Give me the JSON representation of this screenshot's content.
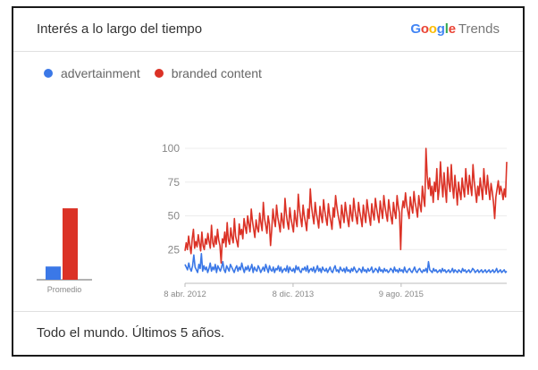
{
  "card": {
    "title": "Interés a lo largo del tiempo",
    "brand": {
      "google": "Google",
      "trends": "Trends"
    },
    "footer": "Todo el mundo. Últimos 5 años."
  },
  "colors": {
    "advertainment": "#3b78e7",
    "branded_content": "#db3226",
    "grid": "#ececec",
    "axis_text": "#888888"
  },
  "chart_data": [
    {
      "type": "bar",
      "categories": [
        "Promedio"
      ],
      "series": [
        {
          "name": "advertainment",
          "values": [
            10
          ]
        },
        {
          "name": "branded content",
          "values": [
            54
          ]
        }
      ],
      "xlabel": "",
      "ylabel": "",
      "ylim": [
        0,
        100
      ]
    },
    {
      "type": "line",
      "title": "",
      "x_start": "2012-04-08",
      "x_end": "2017-03-26",
      "xticks": [
        {
          "date": "2012-04-08",
          "label": "8 abr. 2012"
        },
        {
          "date": "2013-12-08",
          "label": "8 dic. 2013"
        },
        {
          "date": "2015-08-09",
          "label": "9 ago. 2015"
        }
      ],
      "yticks": [
        25,
        50,
        75,
        100
      ],
      "ylim": [
        0,
        100
      ],
      "grid": true,
      "legend": "top-left",
      "series": [
        {
          "name": "advertainment",
          "values": [
            14,
            12,
            10,
            15,
            11,
            9,
            13,
            21,
            12,
            10,
            8,
            14,
            11,
            22,
            9,
            13,
            10,
            12,
            8,
            11,
            15,
            9,
            12,
            10,
            14,
            8,
            13,
            11,
            9,
            12,
            16,
            10,
            8,
            13,
            11,
            9,
            14,
            12,
            10,
            8,
            11,
            13,
            9,
            12,
            10,
            15,
            11,
            8,
            12,
            10,
            13,
            9,
            11,
            14,
            8,
            12,
            10,
            9,
            13,
            11,
            8,
            10,
            12,
            9,
            14,
            11,
            8,
            13,
            10,
            9,
            12,
            8,
            11,
            10,
            13,
            9,
            12,
            8,
            10,
            11,
            9,
            13,
            8,
            12,
            10,
            9,
            11,
            8,
            13,
            10,
            12,
            9,
            8,
            11,
            10,
            12,
            9,
            13,
            8,
            10,
            11,
            9,
            12,
            8,
            10,
            13,
            9,
            11,
            8,
            12,
            10,
            9,
            11,
            8,
            10,
            12,
            9,
            8,
            11,
            13,
            9,
            10,
            8,
            12,
            10,
            9,
            11,
            8,
            12,
            9,
            10,
            8,
            11,
            9,
            12,
            10,
            8,
            9,
            11,
            10,
            8,
            12,
            9,
            10,
            8,
            11,
            9,
            10,
            12,
            8,
            9,
            11,
            10,
            8,
            12,
            9,
            10,
            8,
            11,
            9,
            10,
            8,
            9,
            11,
            10,
            8,
            12,
            9,
            10,
            8,
            11,
            9,
            10,
            8,
            12,
            9,
            8,
            10,
            11,
            9,
            8,
            10,
            12,
            9,
            8,
            10,
            11,
            9,
            8,
            10,
            9,
            11,
            8,
            16,
            10,
            9,
            8,
            11,
            9,
            10,
            8,
            9,
            10,
            8,
            11,
            9,
            10,
            8,
            9,
            10,
            8,
            9,
            11,
            8,
            10,
            9,
            8,
            10,
            9,
            8,
            11,
            9,
            10,
            8,
            9,
            10,
            8,
            9,
            11,
            10,
            8,
            9,
            10,
            8,
            9,
            10,
            8,
            9,
            10,
            8,
            9,
            10,
            8,
            9,
            10,
            8,
            9,
            11,
            8,
            9,
            10,
            8,
            9,
            10,
            8,
            9
          ]
        },
        {
          "name": "branded content",
          "values": [
            24,
            30,
            25,
            35,
            28,
            22,
            33,
            40,
            26,
            31,
            27,
            36,
            30,
            24,
            38,
            28,
            25,
            33,
            29,
            37,
            31,
            26,
            43,
            30,
            27,
            35,
            29,
            40,
            32,
            28,
            15,
            33,
            30,
            38,
            27,
            45,
            32,
            29,
            41,
            34,
            30,
            48,
            35,
            31,
            27,
            44,
            36,
            40,
            33,
            48,
            42,
            37,
            50,
            44,
            38,
            55,
            46,
            40,
            34,
            47,
            41,
            38,
            52,
            45,
            39,
            60,
            48,
            43,
            37,
            50,
            44,
            28,
            40,
            55,
            47,
            42,
            58,
            49,
            44,
            38,
            52,
            46,
            41,
            63,
            52,
            45,
            40,
            56,
            48,
            43,
            38,
            54,
            47,
            42,
            66,
            55,
            48,
            42,
            58,
            50,
            45,
            39,
            55,
            48,
            70,
            57,
            50,
            44,
            60,
            52,
            47,
            41,
            57,
            50,
            45,
            62,
            54,
            48,
            43,
            59,
            51,
            46,
            40,
            56,
            49,
            65,
            57,
            51,
            46,
            41,
            58,
            51,
            45,
            60,
            53,
            47,
            42,
            58,
            51,
            46,
            63,
            55,
            49,
            44,
            60,
            53,
            48,
            42,
            58,
            51,
            45,
            62,
            55,
            49,
            43,
            59,
            52,
            47,
            63,
            56,
            50,
            45,
            61,
            54,
            48,
            65,
            57,
            51,
            46,
            62,
            55,
            49,
            44,
            60,
            53,
            48,
            65,
            57,
            52,
            25,
            54,
            61,
            56,
            67,
            58,
            53,
            48,
            64,
            57,
            52,
            68,
            60,
            55,
            49,
            65,
            58,
            53,
            72,
            63,
            57,
            100,
            80,
            70,
            78,
            65,
            72,
            60,
            75,
            68,
            85,
            62,
            70,
            90,
            75,
            64,
            82,
            70,
            60,
            86,
            74,
            68,
            88,
            72,
            63,
            80,
            70,
            58,
            75,
            68,
            62,
            78,
            70,
            64,
            85,
            74,
            66,
            80,
            72,
            65,
            88,
            76,
            68,
            60,
            72,
            65,
            78,
            70,
            62,
            85,
            73,
            66,
            80,
            70,
            62,
            74,
            68,
            60,
            48,
            64,
            70,
            76,
            66,
            72,
            68,
            62,
            70,
            64,
            90
          ]
        }
      ]
    }
  ]
}
